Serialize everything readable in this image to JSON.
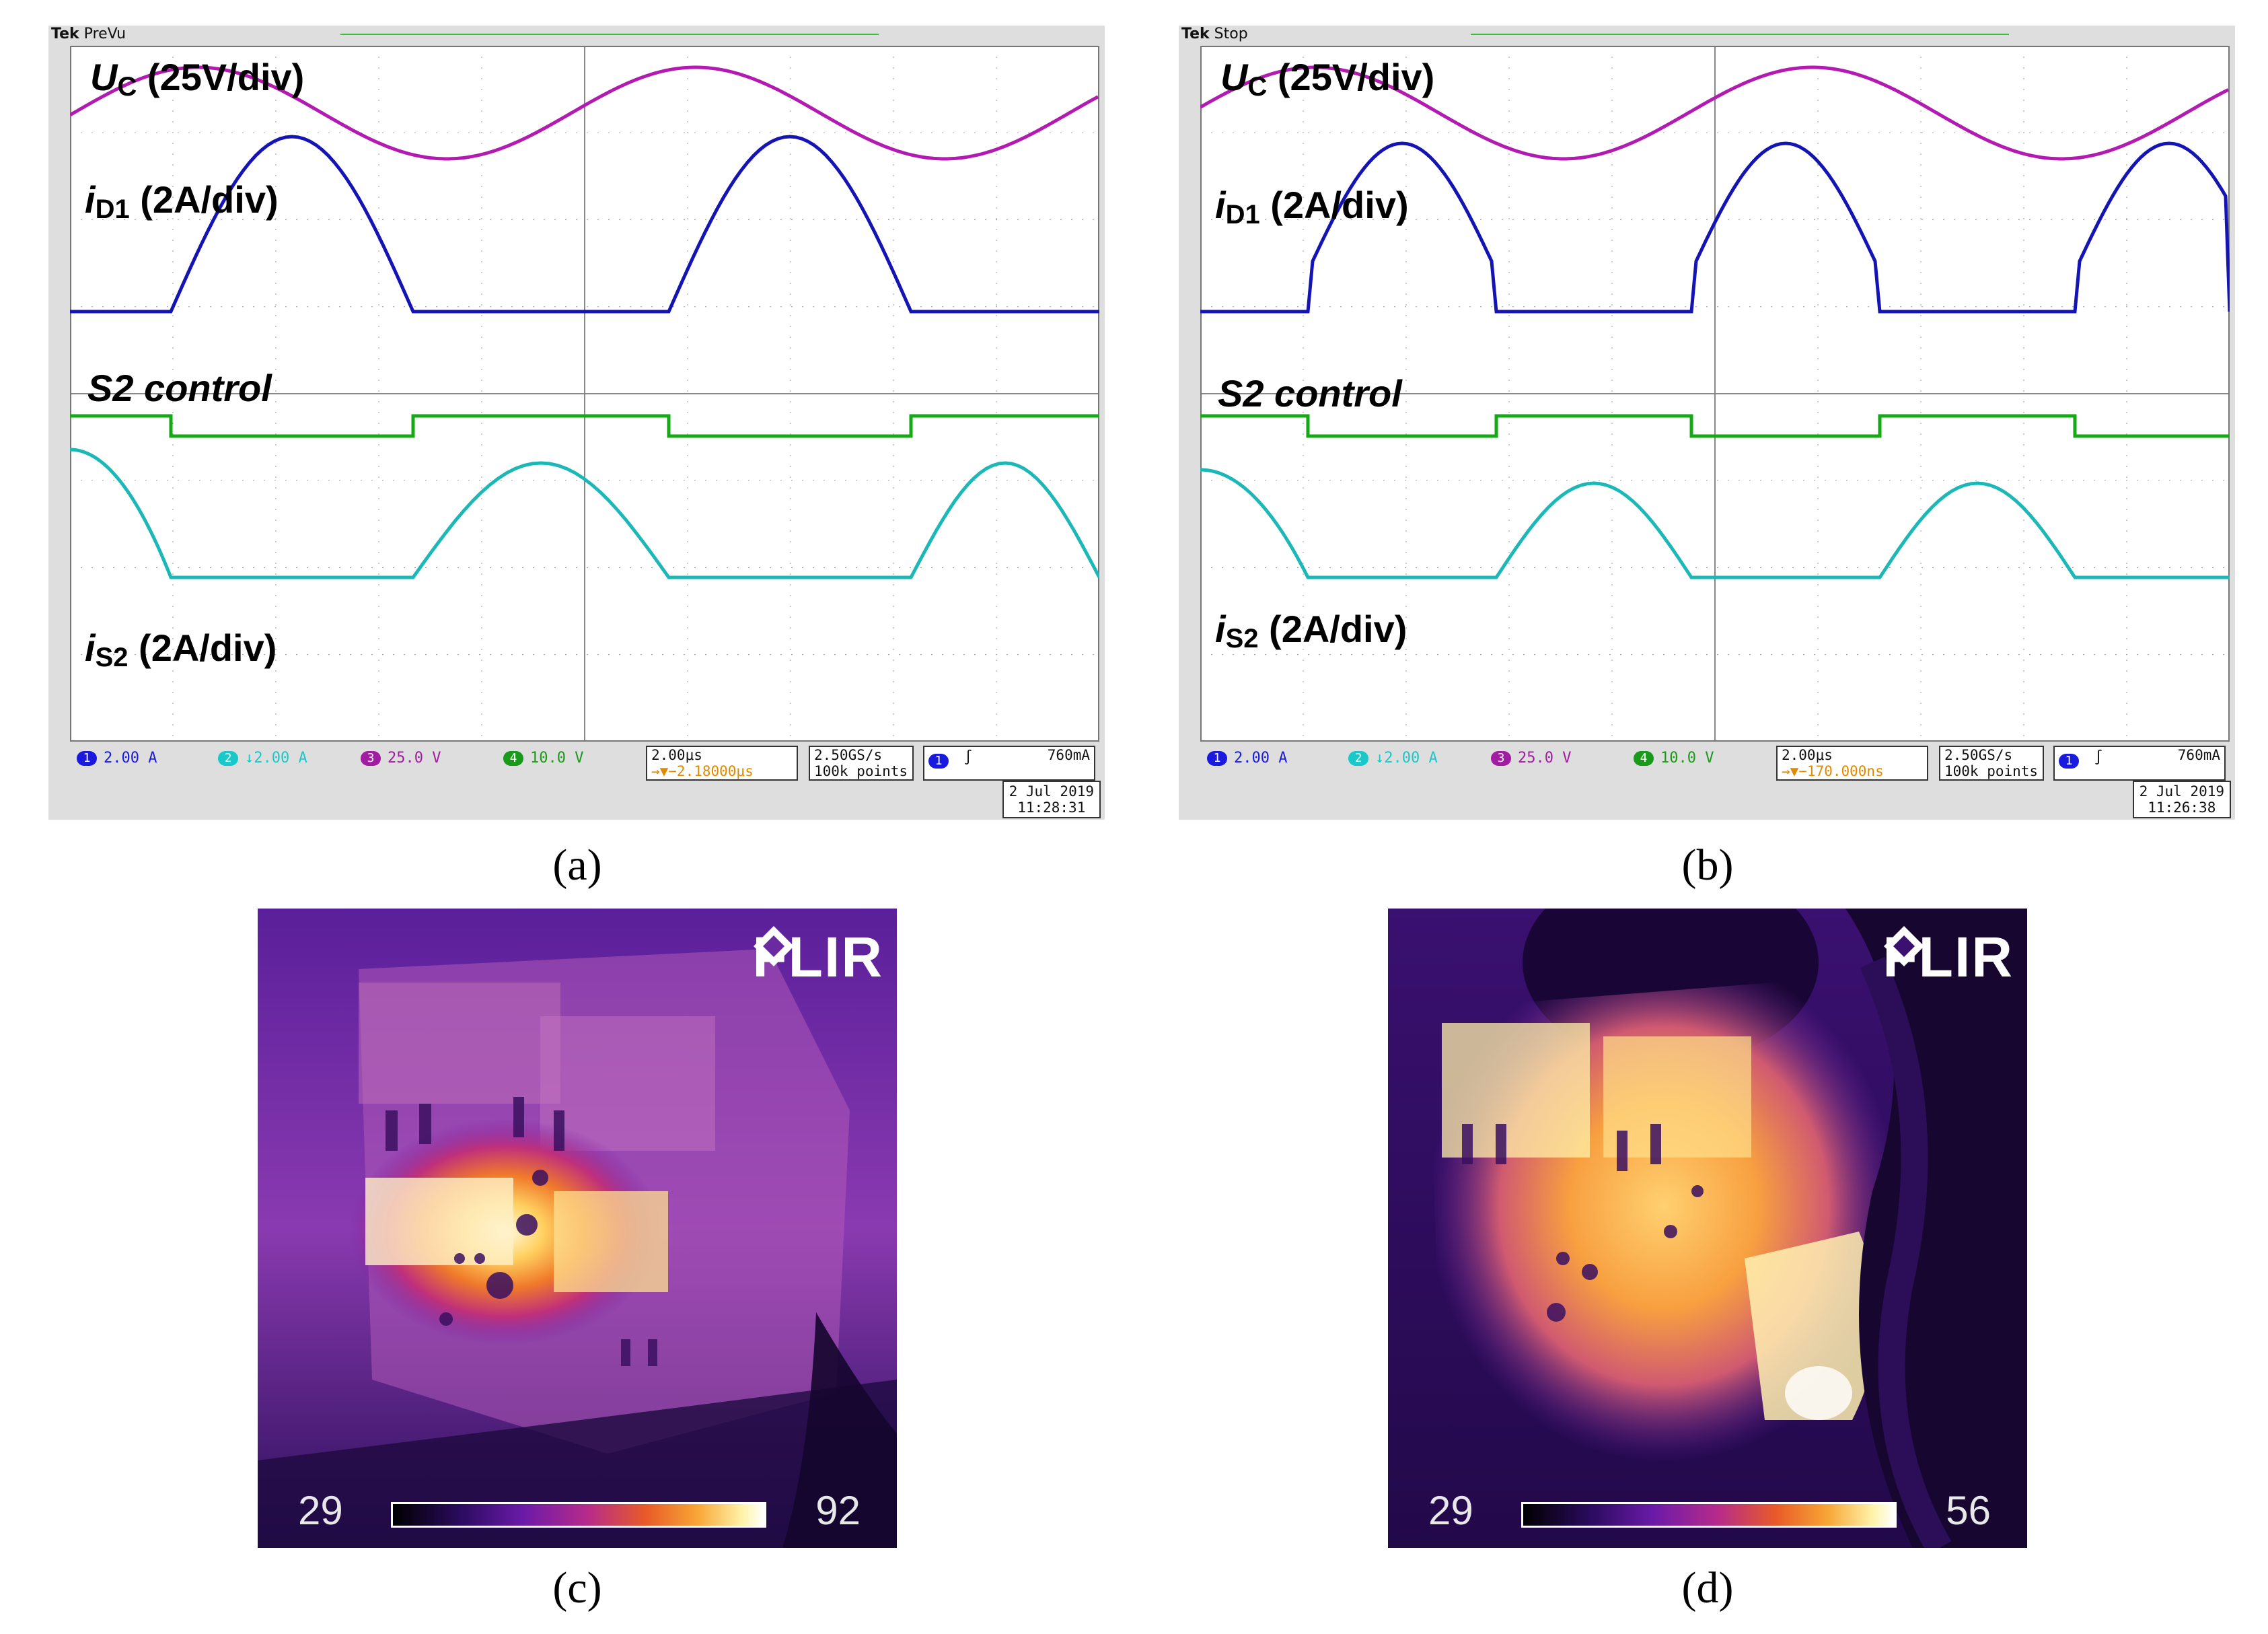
{
  "panels": [
    {
      "id": "a",
      "caption": "(a)",
      "scope": {
        "brand": "Tek",
        "mode": "PreVu",
        "labels": {
          "uc_main": "U",
          "uc_sub": "C",
          "uc_scale": " (25V/div)",
          "id1_main": "i",
          "id1_sub": "D1",
          "id1_scale": " (2A/div)",
          "s2": "S2 control",
          "is2_main": "i",
          "is2_sub": "S2",
          "is2_scale": " (2A/div)"
        },
        "channels": [
          {
            "num": "1",
            "scale": "2.00 A",
            "color": "#1a1adf"
          },
          {
            "num": "2",
            "scale": "↓2.00 A",
            "color": "#19c8c8"
          },
          {
            "num": "3",
            "scale": "25.0 V",
            "color": "#a11ca1"
          },
          {
            "num": "4",
            "scale": "10.0 V",
            "color": "#1a9a1a"
          }
        ],
        "timebase": "2.00μs",
        "delay": "→▼−2.18000μs",
        "sample_rate": "2.50GS/s",
        "record_length": "100k points",
        "trigger_channel": "1",
        "trigger_level": "760mA",
        "date": "2 Jul  2019",
        "time": "11:28:31"
      },
      "waveform_profile": "wide"
    },
    {
      "id": "b",
      "caption": "(b)",
      "scope": {
        "brand": "Tek",
        "mode": "Stop",
        "labels": {
          "uc_main": "U",
          "uc_sub": "C",
          "uc_scale": " (25V/div)",
          "id1_main": "i",
          "id1_sub": "D1",
          "id1_scale": " (2A/div)",
          "s2": "S2 control",
          "is2_main": "i",
          "is2_sub": "S2",
          "is2_scale": " (2A/div)"
        },
        "channels": [
          {
            "num": "1",
            "scale": "2.00 A",
            "color": "#1a1adf"
          },
          {
            "num": "2",
            "scale": "↓2.00 A",
            "color": "#19c8c8"
          },
          {
            "num": "3",
            "scale": "25.0 V",
            "color": "#a11ca1"
          },
          {
            "num": "4",
            "scale": "10.0 V",
            "color": "#1a9a1a"
          }
        ],
        "timebase": "2.00μs",
        "delay": "→▼−170.000ns",
        "sample_rate": "2.50GS/s",
        "record_length": "100k points",
        "trigger_channel": "1",
        "trigger_level": "760mA",
        "date": "2 Jul  2019",
        "time": "11:26:38"
      },
      "waveform_profile": "narrow"
    }
  ],
  "thermal_images": [
    {
      "id": "c",
      "caption": "(c)",
      "brand": "FLIR",
      "scale_min": "29",
      "scale_max": "92"
    },
    {
      "id": "d",
      "caption": "(d)",
      "brand": "FLIR",
      "scale_min": "29",
      "scale_max": "56"
    }
  ],
  "colors": {
    "uc_trace": "#b21ab2",
    "id1_trace": "#1414b4",
    "s2_trace": "#16a816",
    "is2_trace": "#1cb8b8",
    "grid": "#9a9a9a"
  }
}
